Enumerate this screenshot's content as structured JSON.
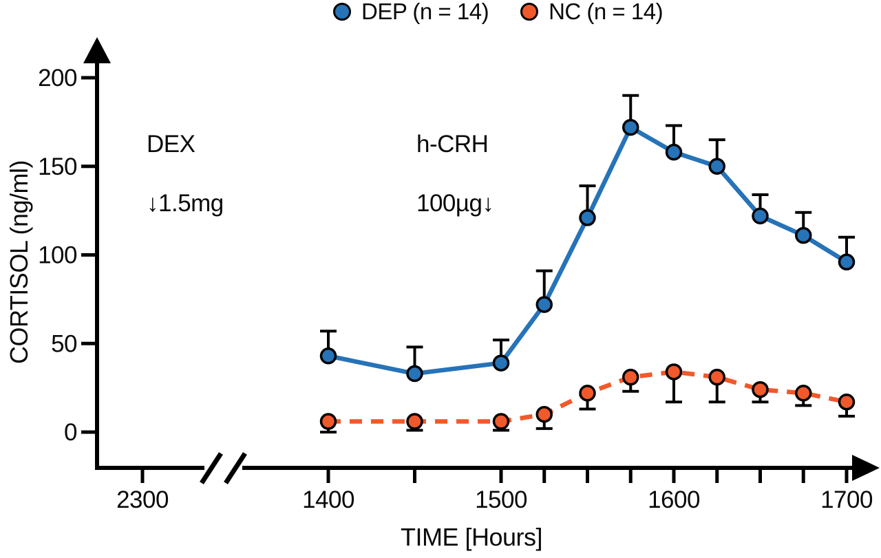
{
  "legend": {
    "items": [
      {
        "label": "DEP (n = 14)",
        "color": "#2673B8"
      },
      {
        "label": "NC (n = 14)",
        "color": "#F0592B"
      }
    ]
  },
  "annotations": {
    "dex": {
      "line1": "DEX",
      "line2": "↓1.5mg"
    },
    "crh": {
      "line1": "h-CRH",
      "line2": "100µg↓"
    }
  },
  "axes": {
    "y_label": "CORTISOL (ng/ml)",
    "x_label": "TIME [Hours]"
  },
  "chart_data": {
    "type": "line",
    "title": "",
    "xlabel": "TIME [Hours]",
    "ylabel": "CORTISOL (ng/ml)",
    "ylim": [
      0,
      200
    ],
    "y_ticks": [
      0,
      50,
      100,
      150,
      200
    ],
    "x_ticks": [
      {
        "t": "2300",
        "label": "2300"
      },
      {
        "t": "1400",
        "label": "1400"
      },
      {
        "t": "1430",
        "label": ""
      },
      {
        "t": "1500",
        "label": "1500"
      },
      {
        "t": "1515",
        "label": ""
      },
      {
        "t": "1530",
        "label": ""
      },
      {
        "t": "1545",
        "label": ""
      },
      {
        "t": "1600",
        "label": "1600"
      },
      {
        "t": "1615",
        "label": ""
      },
      {
        "t": "1630",
        "label": ""
      },
      {
        "t": "1645",
        "label": ""
      },
      {
        "t": "1700",
        "label": "1700"
      }
    ],
    "axis_break_between": [
      "2300",
      "1400"
    ],
    "grid": false,
    "legend_position": "top-center",
    "series": [
      {
        "name": "DEP (n = 14)",
        "color": "#2673B8",
        "line_style": "solid",
        "marker": "circle",
        "error_direction": "up",
        "x": [
          "1400",
          "1430",
          "1500",
          "1515",
          "1530",
          "1545",
          "1600",
          "1615",
          "1630",
          "1645",
          "1700"
        ],
        "values": [
          43,
          33,
          39,
          72,
          121,
          172,
          158,
          150,
          122,
          111,
          96
        ],
        "errors": [
          14,
          15,
          13,
          19,
          18,
          18,
          15,
          15,
          12,
          13,
          14
        ]
      },
      {
        "name": "NC (n = 14)",
        "color": "#F0592B",
        "line_style": "dashed",
        "marker": "circle",
        "error_direction": "down",
        "x": [
          "1400",
          "1430",
          "1500",
          "1515",
          "1530",
          "1545",
          "1600",
          "1615",
          "1630",
          "1645",
          "1700"
        ],
        "values": [
          6,
          6,
          6,
          10,
          22,
          31,
          34,
          31,
          24,
          22,
          17
        ],
        "errors": [
          6,
          5,
          5,
          8,
          9,
          8,
          17,
          14,
          7,
          7,
          8
        ]
      }
    ]
  }
}
